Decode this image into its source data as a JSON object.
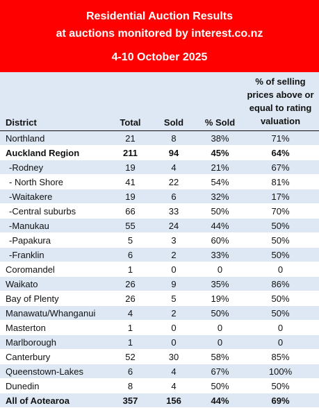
{
  "header": {
    "title_line1": "Residential Auction Results",
    "title_line2": "at auctions monitored by interest.co.nz",
    "date_range": "4-10 October 2025",
    "background_color": "#ff0000"
  },
  "table": {
    "columns": {
      "district": "District",
      "total": "Total",
      "sold": "Sold",
      "pct_sold": "% Sold",
      "pct_above_valuation_line1": "% of selling",
      "pct_above_valuation_line2": "prices above or",
      "pct_above_valuation_line3": "equal to rating",
      "pct_above_valuation_line4": "valuation"
    },
    "rows": [
      {
        "district": "Northland",
        "total": "21",
        "sold": "8",
        "pct_sold": "38%",
        "pct_above": "71%",
        "bold": false,
        "sub": false
      },
      {
        "district": "Auckland Region",
        "total": "211",
        "sold": "94",
        "pct_sold": "45%",
        "pct_above": "64%",
        "bold": true,
        "sub": false
      },
      {
        "district": "-Rodney",
        "total": "19",
        "sold": "4",
        "pct_sold": "21%",
        "pct_above": "67%",
        "bold": false,
        "sub": true
      },
      {
        "district": "- North Shore",
        "total": "41",
        "sold": "22",
        "pct_sold": "54%",
        "pct_above": "81%",
        "bold": false,
        "sub": true
      },
      {
        "district": "-Waitakere",
        "total": "19",
        "sold": "6",
        "pct_sold": "32%",
        "pct_above": "17%",
        "bold": false,
        "sub": true
      },
      {
        "district": "-Central suburbs",
        "total": "66",
        "sold": "33",
        "pct_sold": "50%",
        "pct_above": "70%",
        "bold": false,
        "sub": true
      },
      {
        "district": "-Manukau",
        "total": "55",
        "sold": "24",
        "pct_sold": "44%",
        "pct_above": "50%",
        "bold": false,
        "sub": true
      },
      {
        "district": "-Papakura",
        "total": "5",
        "sold": "3",
        "pct_sold": "60%",
        "pct_above": "50%",
        "bold": false,
        "sub": true
      },
      {
        "district": "-Franklin",
        "total": "6",
        "sold": "2",
        "pct_sold": "33%",
        "pct_above": "50%",
        "bold": false,
        "sub": true
      },
      {
        "district": "Coromandel",
        "total": "1",
        "sold": "0",
        "pct_sold": "0",
        "pct_above": "0",
        "bold": false,
        "sub": false
      },
      {
        "district": "Waikato",
        "total": "26",
        "sold": "9",
        "pct_sold": "35%",
        "pct_above": "86%",
        "bold": false,
        "sub": false
      },
      {
        "district": "Bay of Plenty",
        "total": "26",
        "sold": "5",
        "pct_sold": "19%",
        "pct_above": "50%",
        "bold": false,
        "sub": false
      },
      {
        "district": "Manawatu/Whanganui",
        "total": "4",
        "sold": "2",
        "pct_sold": "50%",
        "pct_above": "50%",
        "bold": false,
        "sub": false
      },
      {
        "district": "Masterton",
        "total": "1",
        "sold": "0",
        "pct_sold": "0",
        "pct_above": "0",
        "bold": false,
        "sub": false
      },
      {
        "district": "Marlborough",
        "total": "1",
        "sold": "0",
        "pct_sold": "0",
        "pct_above": "0",
        "bold": false,
        "sub": false
      },
      {
        "district": "Canterbury",
        "total": "52",
        "sold": "30",
        "pct_sold": "58%",
        "pct_above": "85%",
        "bold": false,
        "sub": false
      },
      {
        "district": "Queenstown-Lakes",
        "total": "6",
        "sold": "4",
        "pct_sold": "67%",
        "pct_above": "100%",
        "bold": false,
        "sub": false
      },
      {
        "district": "Dunedin",
        "total": "8",
        "sold": "4",
        "pct_sold": "50%",
        "pct_above": "50%",
        "bold": false,
        "sub": false
      }
    ],
    "total_row": {
      "district": "All of Aotearoa",
      "total": "357",
      "sold": "156",
      "pct_sold": "44%",
      "pct_above": "69%"
    }
  }
}
